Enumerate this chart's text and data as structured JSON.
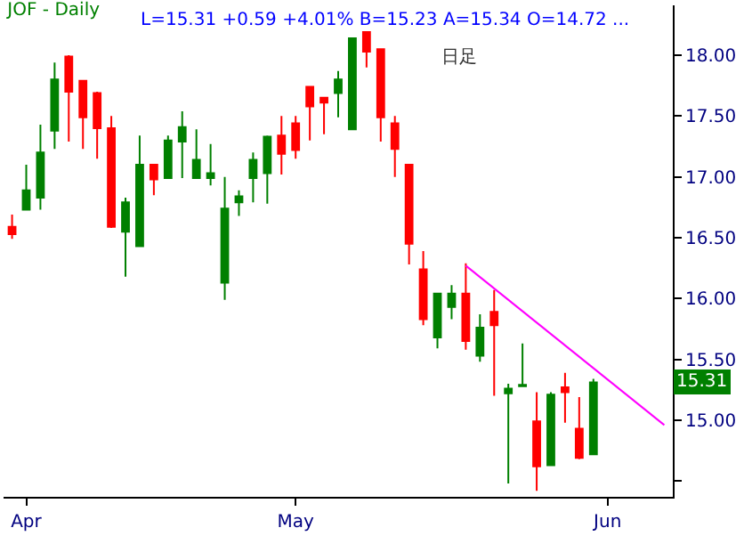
{
  "chart_data": {
    "type": "candlestick",
    "title": "JOF - Daily",
    "subtitle": "L=15.31 +0.59 +4.01% B=15.23 A=15.34 O=14.72 ...",
    "categories": [
      null,
      "Apr",
      null,
      null,
      null,
      null,
      null,
      null,
      null,
      null,
      null,
      null,
      null,
      null,
      null,
      null,
      null,
      null,
      null,
      null,
      "May",
      null,
      null,
      null,
      null,
      null,
      null,
      null,
      null,
      null,
      null,
      null,
      null,
      null,
      null,
      null,
      null,
      null,
      null,
      null,
      null,
      null,
      "Jun",
      null,
      null,
      null,
      null
    ],
    "ohlc": [
      [
        16.59,
        16.69,
        16.49,
        16.53
      ],
      [
        16.73,
        17.1,
        16.73,
        16.89
      ],
      [
        16.83,
        17.43,
        16.73,
        17.2
      ],
      [
        17.38,
        17.94,
        17.23,
        17.8
      ],
      [
        17.99,
        18.0,
        17.29,
        17.7
      ],
      [
        17.79,
        17.79,
        17.23,
        17.49
      ],
      [
        17.69,
        17.7,
        17.15,
        17.4
      ],
      [
        17.4,
        17.5,
        16.58,
        16.59
      ],
      [
        16.55,
        16.83,
        16.18,
        16.79
      ],
      [
        16.43,
        17.34,
        16.43,
        17.1
      ],
      [
        17.1,
        17.1,
        16.85,
        16.98
      ],
      [
        16.99,
        17.34,
        16.99,
        17.3
      ],
      [
        17.29,
        17.54,
        16.99,
        17.41
      ],
      [
        16.99,
        17.39,
        16.99,
        17.14
      ],
      [
        16.99,
        17.27,
        16.93,
        17.03
      ],
      [
        16.13,
        17.0,
        15.99,
        16.74
      ],
      [
        16.79,
        16.89,
        16.68,
        16.84
      ],
      [
        16.99,
        17.2,
        16.79,
        17.14
      ],
      [
        17.03,
        17.34,
        16.78,
        17.33
      ],
      [
        17.34,
        17.5,
        17.02,
        17.19
      ],
      [
        17.44,
        17.5,
        17.15,
        17.22
      ],
      [
        17.74,
        17.74,
        17.3,
        17.58
      ],
      [
        17.65,
        17.65,
        17.35,
        17.61
      ],
      [
        17.69,
        17.87,
        17.49,
        17.8
      ],
      [
        17.39,
        18.14,
        17.39,
        18.14
      ],
      [
        18.19,
        18.19,
        17.9,
        18.03
      ],
      [
        18.05,
        18.05,
        17.29,
        17.49
      ],
      [
        17.44,
        17.5,
        17.0,
        17.23
      ],
      [
        17.1,
        17.1,
        16.28,
        16.45
      ],
      [
        16.24,
        16.39,
        15.78,
        15.83
      ],
      [
        15.68,
        16.04,
        15.59,
        16.04
      ],
      [
        15.93,
        16.11,
        15.83,
        16.04
      ],
      [
        16.04,
        16.29,
        15.58,
        15.65
      ],
      [
        15.53,
        15.87,
        15.48,
        15.76
      ],
      [
        15.89,
        16.07,
        15.2,
        15.78
      ],
      [
        15.22,
        15.3,
        14.48,
        15.26
      ],
      [
        15.28,
        15.63,
        15.28,
        15.29
      ],
      [
        14.99,
        15.23,
        14.42,
        14.62
      ],
      [
        14.63,
        15.23,
        14.63,
        15.21
      ],
      [
        15.27,
        15.39,
        14.98,
        15.23
      ],
      [
        14.93,
        15.19,
        14.68,
        14.69
      ],
      [
        14.72,
        15.34,
        14.72,
        15.31
      ],
      null,
      null,
      null,
      null,
      null
    ],
    "colors": [
      "#ff0000",
      "#008000",
      "#008000",
      "#008000",
      "#ff0000",
      "#ff0000",
      "#ff0000",
      "#ff0000",
      "#008000",
      "#008000",
      "#ff0000",
      "#008000",
      "#008000",
      "#008000",
      "#008000",
      "#008000",
      "#008000",
      "#008000",
      "#008000",
      "#ff0000",
      "#ff0000",
      "#ff0000",
      "#ff0000",
      "#008000",
      "#008000",
      "#ff0000",
      "#ff0000",
      "#ff0000",
      "#ff0000",
      "#ff0000",
      "#008000",
      "#008000",
      "#ff0000",
      "#008000",
      "#ff0000",
      "#008000",
      "#008000",
      "#ff0000",
      "#008000",
      "#ff0000",
      "#ff0000",
      "#008000",
      null,
      null,
      null,
      null,
      null
    ],
    "series": [
      {
        "type": "line",
        "color": "#ff00ff",
        "values": [
          null,
          null,
          null,
          null,
          null,
          null,
          null,
          null,
          null,
          null,
          null,
          null,
          null,
          null,
          null,
          null,
          null,
          null,
          null,
          null,
          null,
          null,
          null,
          null,
          null,
          null,
          null,
          null,
          null,
          null,
          null,
          null,
          16.27,
          null,
          null,
          null,
          null,
          null,
          null,
          null,
          null,
          null,
          null,
          null,
          null,
          null,
          14.96
        ]
      }
    ],
    "annotations": [
      "日足",
      "15.31"
    ],
    "ylim": [
      14.37,
      18.41
    ],
    "yticks": [
      {
        "value": 14.5,
        "label": null
      },
      {
        "value": 15,
        "label": "15.00"
      },
      {
        "value": 15.5,
        "label": "15.50"
      },
      {
        "value": 16,
        "label": "16.00"
      },
      {
        "value": 16.5,
        "label": "16.50"
      },
      {
        "value": 17,
        "label": "17.00"
      },
      {
        "value": 17.5,
        "label": "17.50"
      },
      {
        "value": 18,
        "label": "18.00"
      }
    ],
    "legend": false
  }
}
